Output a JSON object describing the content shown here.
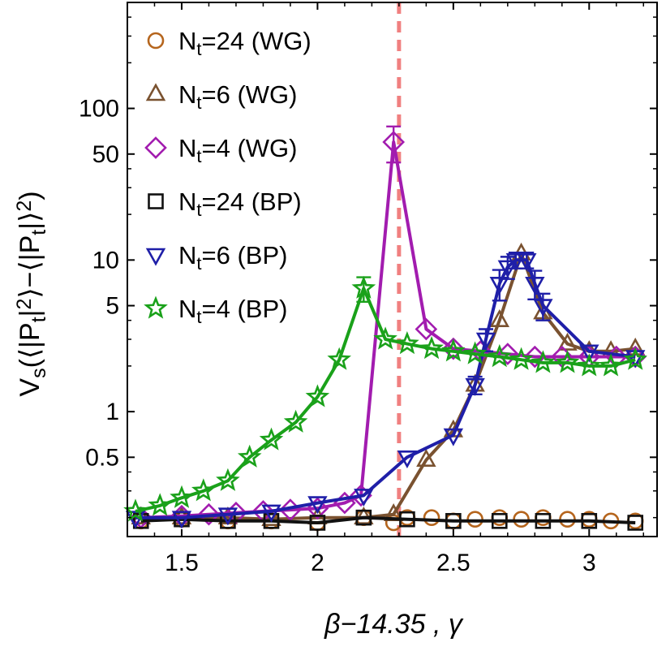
{
  "chart_data": {
    "type": "line",
    "title": "",
    "xlabel": "β−14.35 , γ",
    "ylabel": "V_s(⟨|P_t|^2⟩−⟨|P_t|⟩^2)",
    "xscale": "linear",
    "yscale": "log",
    "xlim": [
      1.3,
      3.25
    ],
    "ylim": [
      0.15,
      500
    ],
    "x_ticks": [
      1.5,
      2.0,
      2.5,
      3.0
    ],
    "x_tick_labels": [
      "1.5",
      "2",
      "2.5",
      "3"
    ],
    "y_ticks": [
      0.5,
      1,
      5,
      10,
      50,
      100
    ],
    "y_tick_labels": [
      "0.5",
      "1",
      "5",
      "10",
      "50",
      "100"
    ],
    "grid": false,
    "legend_position": "top-left",
    "reference_line": {
      "x": 2.3,
      "style": "dashed",
      "color": "#f08080"
    },
    "series": [
      {
        "name": "N_t=24 (WG)",
        "label_main": "N",
        "label_sub": "t",
        "label_rest": "=24 (WG)",
        "marker": "circle",
        "color": "#b5651d",
        "line": false,
        "x": [
          1.35,
          1.5,
          1.67,
          1.83,
          2.0,
          2.17,
          2.28,
          2.33,
          2.42,
          2.5,
          2.58,
          2.67,
          2.75,
          2.83,
          2.92,
          3.0,
          3.08,
          3.17
        ],
        "y": [
          0.19,
          0.195,
          0.19,
          0.19,
          0.185,
          0.2,
          0.185,
          0.2,
          0.2,
          0.19,
          0.195,
          0.2,
          0.195,
          0.2,
          0.195,
          0.195,
          0.19,
          0.19
        ]
      },
      {
        "name": "N_t=6 (WG)",
        "label_main": "N",
        "label_sub": "t",
        "label_rest": "=6 (WG)",
        "marker": "triangle-up",
        "color": "#7a5230",
        "line": true,
        "x": [
          1.35,
          1.5,
          1.67,
          1.83,
          2.0,
          2.17,
          2.28,
          2.4,
          2.5,
          2.58,
          2.67,
          2.75,
          2.83,
          2.92,
          3.0,
          3.08,
          3.17
        ],
        "y": [
          0.2,
          0.2,
          0.2,
          0.195,
          0.2,
          0.2,
          0.21,
          0.48,
          0.75,
          1.5,
          4.0,
          11.0,
          4.5,
          2.8,
          2.5,
          2.5,
          2.6
        ]
      },
      {
        "name": "N_t=4 (WG)",
        "label_main": "N",
        "label_sub": "t",
        "label_rest": "=4 (WG)",
        "marker": "diamond",
        "color": "#a21caf",
        "line": true,
        "x": [
          1.35,
          1.5,
          1.6,
          1.7,
          1.8,
          1.9,
          2.0,
          2.1,
          2.16,
          2.28,
          2.4,
          2.5,
          2.6,
          2.7,
          2.8,
          2.9,
          3.0,
          3.1,
          3.17
        ],
        "y": [
          0.2,
          0.205,
          0.21,
          0.215,
          0.22,
          0.225,
          0.23,
          0.25,
          0.28,
          60.0,
          3.5,
          2.6,
          2.5,
          2.4,
          2.3,
          2.3,
          2.3,
          2.3,
          2.3
        ],
        "y_err": [
          null,
          null,
          null,
          null,
          null,
          null,
          null,
          null,
          null,
          16.0,
          null,
          null,
          null,
          null,
          null,
          null,
          null,
          null,
          null
        ]
      },
      {
        "name": "N_t=24 (BP)",
        "label_main": "N",
        "label_sub": "t",
        "label_rest": "=24 (BP)",
        "marker": "square",
        "color": "#111111",
        "line": true,
        "x": [
          1.35,
          1.5,
          1.67,
          1.83,
          2.0,
          2.17,
          2.33,
          2.5,
          2.67,
          2.83,
          3.0,
          3.17
        ],
        "y": [
          0.19,
          0.195,
          0.19,
          0.19,
          0.185,
          0.2,
          0.195,
          0.19,
          0.19,
          0.19,
          0.19,
          0.185
        ]
      },
      {
        "name": "N_t=6 (BP)",
        "label_main": "N",
        "label_sub": "t",
        "label_rest": "=6 (BP)",
        "marker": "triangle-down",
        "color": "#1f1fa8",
        "line": true,
        "x": [
          1.33,
          1.5,
          1.67,
          1.83,
          2.0,
          2.17,
          2.33,
          2.5,
          2.58,
          2.62,
          2.67,
          2.7,
          2.73,
          2.77,
          2.8,
          2.83,
          3.0,
          3.17
        ],
        "y": [
          0.2,
          0.2,
          0.21,
          0.22,
          0.25,
          0.28,
          0.5,
          0.7,
          1.5,
          3.0,
          7.0,
          9.0,
          10.0,
          10.0,
          7.0,
          5.0,
          2.5,
          2.3
        ],
        "y_err": [
          null,
          null,
          null,
          null,
          null,
          null,
          null,
          null,
          0.2,
          0.5,
          1.6,
          1.5,
          1.2,
          1.2,
          1.5,
          1.0,
          null,
          null
        ]
      },
      {
        "name": "N_t=4 (BP)",
        "label_main": "N",
        "label_sub": "t",
        "label_rest": "=4 (BP)",
        "marker": "star",
        "color": "#1aa11a",
        "line": true,
        "x": [
          1.33,
          1.42,
          1.5,
          1.58,
          1.67,
          1.75,
          1.83,
          1.92,
          2.0,
          2.08,
          2.17,
          2.25,
          2.33,
          2.42,
          2.5,
          2.58,
          2.67,
          2.75,
          2.83,
          2.92,
          3.0,
          3.08,
          3.17
        ],
        "y": [
          0.22,
          0.24,
          0.27,
          0.3,
          0.35,
          0.5,
          0.65,
          0.85,
          1.25,
          2.2,
          6.5,
          3.0,
          2.8,
          2.6,
          2.5,
          2.4,
          2.3,
          2.2,
          2.1,
          2.1,
          2.0,
          2.0,
          2.2
        ],
        "y_err": [
          null,
          null,
          null,
          null,
          null,
          null,
          null,
          null,
          null,
          null,
          1.2,
          null,
          null,
          null,
          null,
          null,
          null,
          null,
          null,
          null,
          null,
          null,
          null
        ]
      }
    ]
  }
}
